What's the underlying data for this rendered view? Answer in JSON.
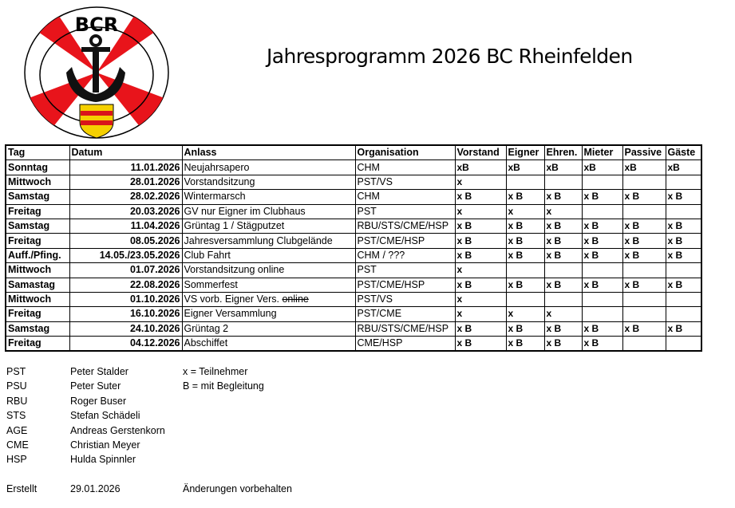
{
  "logo": {
    "text": "BCR",
    "colors": {
      "ring_red": "#e8141b",
      "shield_yellow": "#f5d000",
      "shield_red": "#d9141b"
    }
  },
  "title": "Jahresprogramm 2026 BC Rheinfelden",
  "table": {
    "headers": [
      "Tag",
      "Datum",
      "Anlass",
      "Organisation",
      "Vorstand",
      "Eigner",
      "Ehren.",
      "Mieter",
      "Passive",
      "Gäste"
    ],
    "rows": [
      {
        "tag": "Sonntag",
        "datum": "11.01.2026",
        "anlass": "Neujahrsapero",
        "anlass_strike": "",
        "org": "CHM",
        "marks": [
          "xB",
          "xB",
          "xB",
          "xB",
          "xB",
          "xB"
        ]
      },
      {
        "tag": "Mittwoch",
        "datum": "28.01.2026",
        "anlass": "Vorstandsitzung",
        "anlass_strike": "",
        "org": "PST/VS",
        "marks": [
          "x",
          "",
          "",
          "",
          "",
          ""
        ]
      },
      {
        "tag": "Samstag",
        "datum": "28.02.2026",
        "anlass": "Wintermarsch",
        "anlass_strike": "",
        "org": "CHM",
        "marks": [
          "x B",
          "x B",
          "x B",
          "x B",
          "x B",
          "x B"
        ]
      },
      {
        "tag": "Freitag",
        "datum": "20.03.2026",
        "anlass": "GV nur Eigner im Clubhaus",
        "anlass_strike": "",
        "org": "PST",
        "marks": [
          "x",
          "x",
          "x",
          "",
          "",
          ""
        ]
      },
      {
        "tag": "Samstag",
        "datum": "11.04.2026",
        "anlass": "Grüntag 1 / Stägputzet",
        "anlass_strike": "",
        "org": "RBU/STS/CME/HSP",
        "marks": [
          "x B",
          "x B",
          "x B",
          "x B",
          "x B",
          "x B"
        ]
      },
      {
        "tag": "Freitag",
        "datum": "08.05.2026",
        "anlass": "Jahresversammlung Clubgelände",
        "anlass_strike": "",
        "org": "PST/CME/HSP",
        "marks": [
          "x B",
          "x B",
          "x B",
          "x B",
          "x B",
          "x B"
        ]
      },
      {
        "tag": "Auff./Pfing.",
        "datum": "14.05./23.05.2026",
        "anlass": "Club Fahrt",
        "anlass_strike": "",
        "org": "CHM / ???",
        "marks": [
          "x B",
          "x B",
          "x B",
          "x B",
          "x B",
          "x B"
        ]
      },
      {
        "tag": "Mittwoch",
        "datum": "01.07.2026",
        "anlass": "Vorstandsitzung online",
        "anlass_strike": "",
        "org": "PST",
        "marks": [
          "x",
          "",
          "",
          "",
          "",
          ""
        ]
      },
      {
        "tag": "Samastag",
        "datum": "22.08.2026",
        "anlass": "Sommerfest",
        "anlass_strike": "",
        "org": "PST/CME/HSP",
        "marks": [
          "x B",
          "x B",
          "x B",
          "x B",
          "x B",
          "x B"
        ]
      },
      {
        "tag": "Mittwoch",
        "datum": "01.10.2026",
        "anlass": "VS vorb. Eigner Vers. ",
        "anlass_strike": "online",
        "org": "PST/VS",
        "marks": [
          "x",
          "",
          "",
          "",
          "",
          ""
        ]
      },
      {
        "tag": "Freitag",
        "datum": "16.10.2026",
        "anlass": "Eigner Versammlung",
        "anlass_strike": "",
        "org": "PST/CME",
        "marks": [
          "x",
          "x",
          "x",
          "",
          "",
          ""
        ]
      },
      {
        "tag": "Samstag",
        "datum": "24.10.2026",
        "anlass": "Grüntag 2",
        "anlass_strike": "",
        "org": "RBU/STS/CME/HSP",
        "marks": [
          "x B",
          "x B",
          "x B",
          "x B",
          "x B",
          "x B"
        ]
      },
      {
        "tag": "Freitag",
        "datum": "04.12.2026",
        "anlass": "Abschiffet",
        "anlass_strike": "",
        "org": "CME/HSP",
        "marks": [
          "x B",
          "x B",
          "x B",
          "x B",
          "",
          ""
        ]
      }
    ]
  },
  "abbreviations": [
    {
      "code": "PST",
      "name": "Peter Stalder"
    },
    {
      "code": "PSU",
      "name": "Peter Suter"
    },
    {
      "code": "RBU",
      "name": "Roger Buser"
    },
    {
      "code": "STS",
      "name": "Stefan Schädeli"
    },
    {
      "code": "AGE",
      "name": "Andreas Gerstenkorn"
    },
    {
      "code": "CME",
      "name": "Christian Meyer"
    },
    {
      "code": "HSP",
      "name": "Hulda Spinnler"
    }
  ],
  "key": [
    "x = Teilnehmer",
    "B = mit Begleitung"
  ],
  "footer": {
    "label": "Erstellt",
    "date": "29.01.2026",
    "note": "Änderungen vorbehalten"
  }
}
